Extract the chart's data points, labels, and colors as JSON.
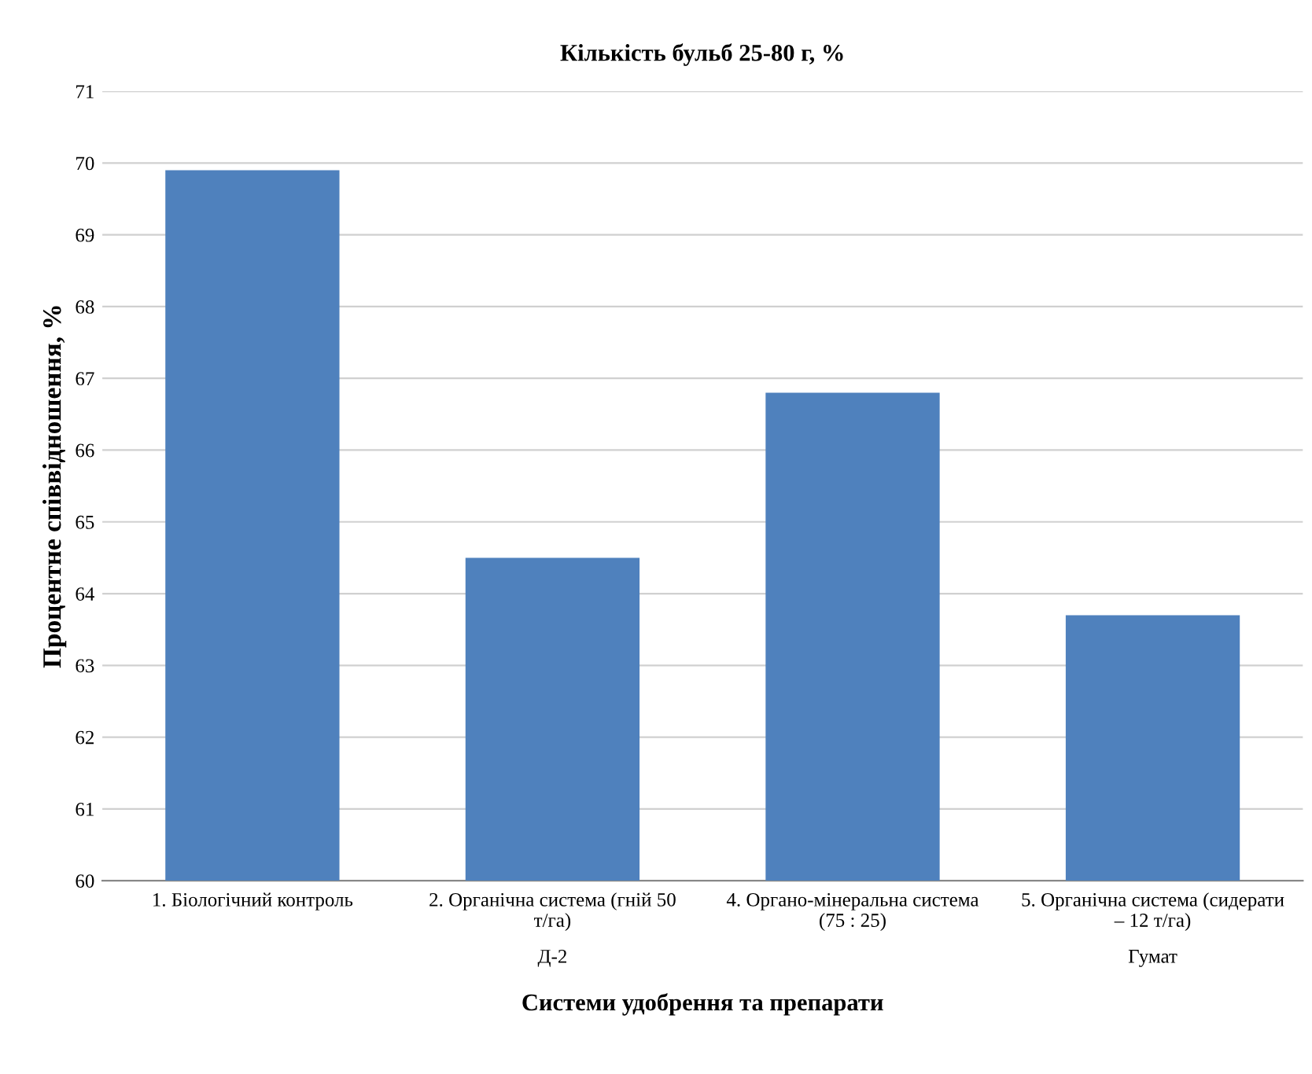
{
  "chart_data": {
    "type": "bar",
    "title": "Кількість бульб 25-80 г, %",
    "xlabel": "Системи удобрення та препарати",
    "ylabel": "Процентне співвідношення, %",
    "categories": [
      "1. Біологічний контроль",
      "2. Органічна система (гній 50 т/га)",
      "4. Органо-мінеральна система (75 : 25)",
      "5. Органічна система (сидерати – 12 т/га)"
    ],
    "values": [
      69.9,
      64.5,
      66.8,
      63.7
    ],
    "color": "#4f81bd",
    "ylim": [
      60,
      71
    ],
    "yticks": [
      60,
      61,
      62,
      63,
      64,
      65,
      66,
      67,
      68,
      69,
      70,
      71
    ],
    "grid": "y",
    "annotations": [
      "Д-2",
      "Гумат"
    ]
  }
}
